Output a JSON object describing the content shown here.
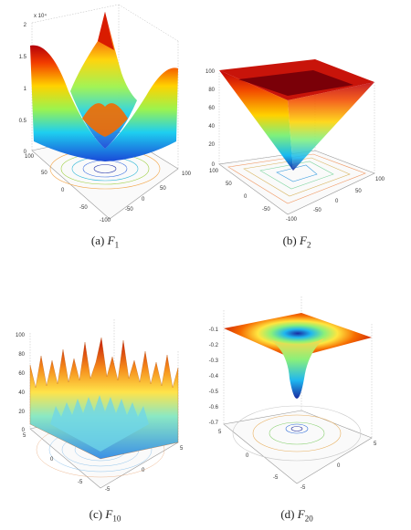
{
  "figure": {
    "panels": [
      {
        "id": "a",
        "caption": {
          "prefix": "(a)",
          "var": "F",
          "sub": "1"
        },
        "z_exponent": "x 10⁴",
        "z_ticks": [
          "2",
          "1.5",
          "1",
          "0.5",
          "0"
        ],
        "x_ticks": [
          "100",
          "50",
          "0",
          "-50",
          "-100"
        ],
        "y_ticks": [
          "100",
          "50",
          "0",
          "-50"
        ]
      },
      {
        "id": "b",
        "caption": {
          "prefix": "(b)",
          "var": "F",
          "sub": "2"
        },
        "z_ticks": [
          "100",
          "80",
          "60",
          "40",
          "20",
          "0"
        ],
        "x_ticks": [
          "100",
          "50",
          "0",
          "-50",
          "-100"
        ],
        "y_ticks": [
          "100",
          "50",
          "0",
          "-50"
        ]
      },
      {
        "id": "c",
        "caption": {
          "prefix": "(c)",
          "var": "F",
          "sub": "10"
        },
        "z_ticks": [
          "100",
          "80",
          "60",
          "40",
          "20",
          "0"
        ],
        "x_ticks": [
          "5",
          "0",
          "-5"
        ],
        "y_ticks": [
          "5",
          "0",
          "-5"
        ]
      },
      {
        "id": "d",
        "caption": {
          "prefix": "(d)",
          "var": "F",
          "sub": "20"
        },
        "z_ticks": [
          "-0.1",
          "-0.2",
          "-0.3",
          "-0.4",
          "-0.5",
          "-0.6",
          "-0.7"
        ],
        "x_ticks": [
          "5",
          "0",
          "-5"
        ],
        "y_ticks": [
          "5",
          "0",
          "-5"
        ]
      }
    ]
  }
}
